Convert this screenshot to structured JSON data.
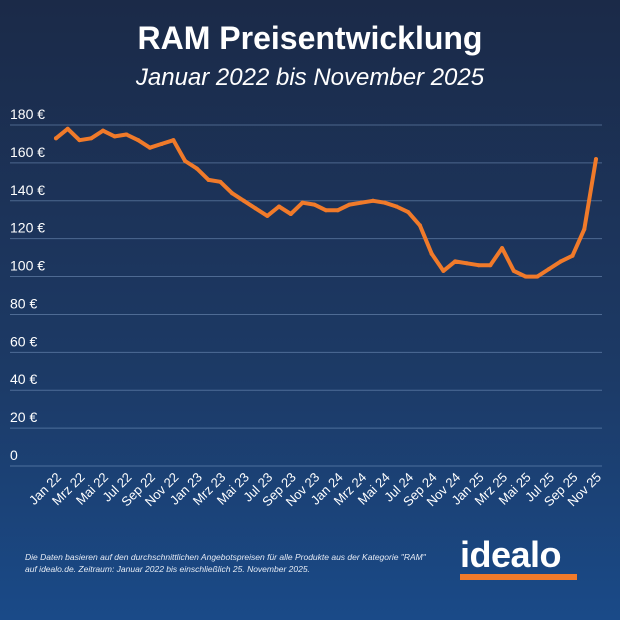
{
  "chart_data": {
    "type": "line",
    "title": "RAM Preisentwicklung",
    "subtitle": "Januar 2022 bis November 2025",
    "y_ticks": [
      "0",
      "20 €",
      "40 €",
      "60 €",
      "80 €",
      "100 €",
      "120 €",
      "140 €",
      "160 €",
      "180 €"
    ],
    "ylim": [
      0,
      180
    ],
    "x_tick_labels": [
      "Jan 22",
      "Mrz 22",
      "Mai 22",
      "Jul 22",
      "Sep 22",
      "Nov 22",
      "Jan 23",
      "Mrz 23",
      "Mai 23",
      "Jul 23",
      "Sep 23",
      "Nov 23",
      "Jan 24",
      "Mrz 24",
      "Mai 24",
      "Jul 24",
      "Sep 24",
      "Nov 24",
      "Jan 25",
      "Mrz 25",
      "Mai 25",
      "Jul 25",
      "Sep 25",
      "Nov 25"
    ],
    "x": [
      "2022-01",
      "2022-02",
      "2022-03",
      "2022-04",
      "2022-05",
      "2022-06",
      "2022-07",
      "2022-08",
      "2022-09",
      "2022-10",
      "2022-11",
      "2022-12",
      "2023-01",
      "2023-02",
      "2023-03",
      "2023-04",
      "2023-05",
      "2023-06",
      "2023-07",
      "2023-08",
      "2023-09",
      "2023-10",
      "2023-11",
      "2023-12",
      "2024-01",
      "2024-02",
      "2024-03",
      "2024-04",
      "2024-05",
      "2024-06",
      "2024-07",
      "2024-08",
      "2024-09",
      "2024-10",
      "2024-11",
      "2024-12",
      "2025-01",
      "2025-02",
      "2025-03",
      "2025-04",
      "2025-05",
      "2025-06",
      "2025-07",
      "2025-08",
      "2025-09",
      "2025-10",
      "2025-11"
    ],
    "values": [
      173,
      178,
      172,
      173,
      177,
      174,
      175,
      172,
      168,
      170,
      172,
      161,
      157,
      151,
      150,
      144,
      140,
      136,
      132,
      137,
      133,
      139,
      138,
      135,
      135,
      138,
      139,
      140,
      139,
      137,
      134,
      127,
      112,
      103,
      108,
      107,
      106,
      106,
      115,
      103,
      100,
      100,
      104,
      108,
      111,
      125,
      162
    ],
    "grid": true,
    "line_color": "#f07a2a"
  },
  "footer": {
    "note_line1": "Die Daten basieren auf den durchschnittlichen Angebotspreisen für alle Produkte aus der Kategorie \"RAM\"",
    "note_line2": "auf idealo.de. Zeitraum: Januar 2022 bis einschließlich 25. November 2025.",
    "logo": "idealo"
  }
}
